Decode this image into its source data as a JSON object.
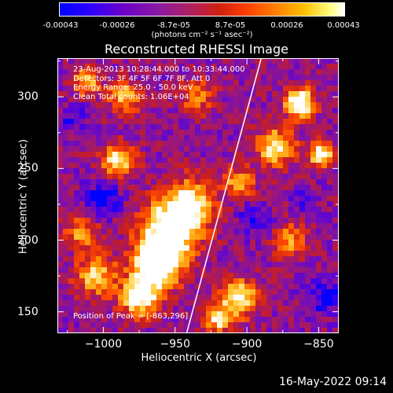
{
  "colorbar": {
    "ticks": [
      "-0.00043",
      "-0.00026",
      "-8.7e-05",
      "8.7e-05",
      "0.00026",
      "0.00043"
    ],
    "unit": "(photons cm⁻² s⁻¹ asec⁻²)"
  },
  "info_lines": [
    "23-Aug-2013 10:28:44.000 to 10:33:44.000",
    "Detectors: 3F 4F 5F 6F 7F 8F, Att 0",
    "Energy Range: 25.0 - 50.0 keV",
    "Clean     Total counts: 1.06E+04"
  ],
  "peak_label": "Position of Peak = [-863,296]",
  "timestamp": "16-May-2022 09:14",
  "chart_data": {
    "type": "heatmap",
    "title": "Reconstructed RHESSI Image",
    "xlabel": "Heliocentric X (arcsec)",
    "ylabel": "Heliocentric Y (arcsec)",
    "xlim": [
      -1032,
      -836
    ],
    "ylim": [
      135,
      327
    ],
    "x_ticks": [
      "−1000",
      "−950",
      "−900",
      "−850"
    ],
    "x_tick_values": [
      -1000,
      -950,
      -900,
      -850
    ],
    "y_ticks": [
      "150",
      "200",
      "250",
      "300"
    ],
    "y_tick_values": [
      150,
      200,
      250,
      300
    ],
    "clim": [
      -0.00043,
      0.00043
    ],
    "colormap": [
      "#0000ff",
      "#5000e0",
      "#7a10b0",
      "#a01870",
      "#c81e20",
      "#ff4a00",
      "#ff9000",
      "#ffd040",
      "#ffffff"
    ],
    "limb_line": [
      [
        -942,
        135
      ],
      [
        -890,
        327
      ]
    ],
    "peak": [
      -863,
      296
    ],
    "bright_regions": [
      {
        "x": -963,
        "y": 182,
        "strength": 1.0,
        "sigma": 11
      },
      {
        "x": -955,
        "y": 205,
        "strength": 0.85,
        "sigma": 14
      },
      {
        "x": -940,
        "y": 225,
        "strength": 0.7,
        "sigma": 12
      },
      {
        "x": -975,
        "y": 160,
        "strength": 0.75,
        "sigma": 9
      },
      {
        "x": -1005,
        "y": 175,
        "strength": 0.55,
        "sigma": 10
      },
      {
        "x": -1015,
        "y": 205,
        "strength": 0.45,
        "sigma": 8
      },
      {
        "x": -990,
        "y": 255,
        "strength": 0.65,
        "sigma": 8
      },
      {
        "x": -985,
        "y": 300,
        "strength": 0.5,
        "sigma": 8
      },
      {
        "x": -1012,
        "y": 310,
        "strength": 0.5,
        "sigma": 7
      },
      {
        "x": -863,
        "y": 296,
        "strength": 0.95,
        "sigma": 7
      },
      {
        "x": -880,
        "y": 265,
        "strength": 0.7,
        "sigma": 9
      },
      {
        "x": -848,
        "y": 260,
        "strength": 0.8,
        "sigma": 6
      },
      {
        "x": -905,
        "y": 240,
        "strength": 0.55,
        "sigma": 7
      },
      {
        "x": -905,
        "y": 160,
        "strength": 0.7,
        "sigma": 9
      },
      {
        "x": -920,
        "y": 145,
        "strength": 0.6,
        "sigma": 7
      },
      {
        "x": -870,
        "y": 200,
        "strength": 0.45,
        "sigma": 8
      },
      {
        "x": -935,
        "y": 300,
        "strength": 0.4,
        "sigma": 8
      }
    ],
    "dark_regions": [
      {
        "x": -1000,
        "y": 228,
        "strength": 0.7,
        "sigma": 9
      },
      {
        "x": -845,
        "y": 160,
        "strength": 0.75,
        "sigma": 8
      },
      {
        "x": -895,
        "y": 215,
        "strength": 0.5,
        "sigma": 8
      },
      {
        "x": -1020,
        "y": 285,
        "strength": 0.5,
        "sigma": 7
      },
      {
        "x": -860,
        "y": 225,
        "strength": 0.45,
        "sigma": 6
      }
    ]
  }
}
